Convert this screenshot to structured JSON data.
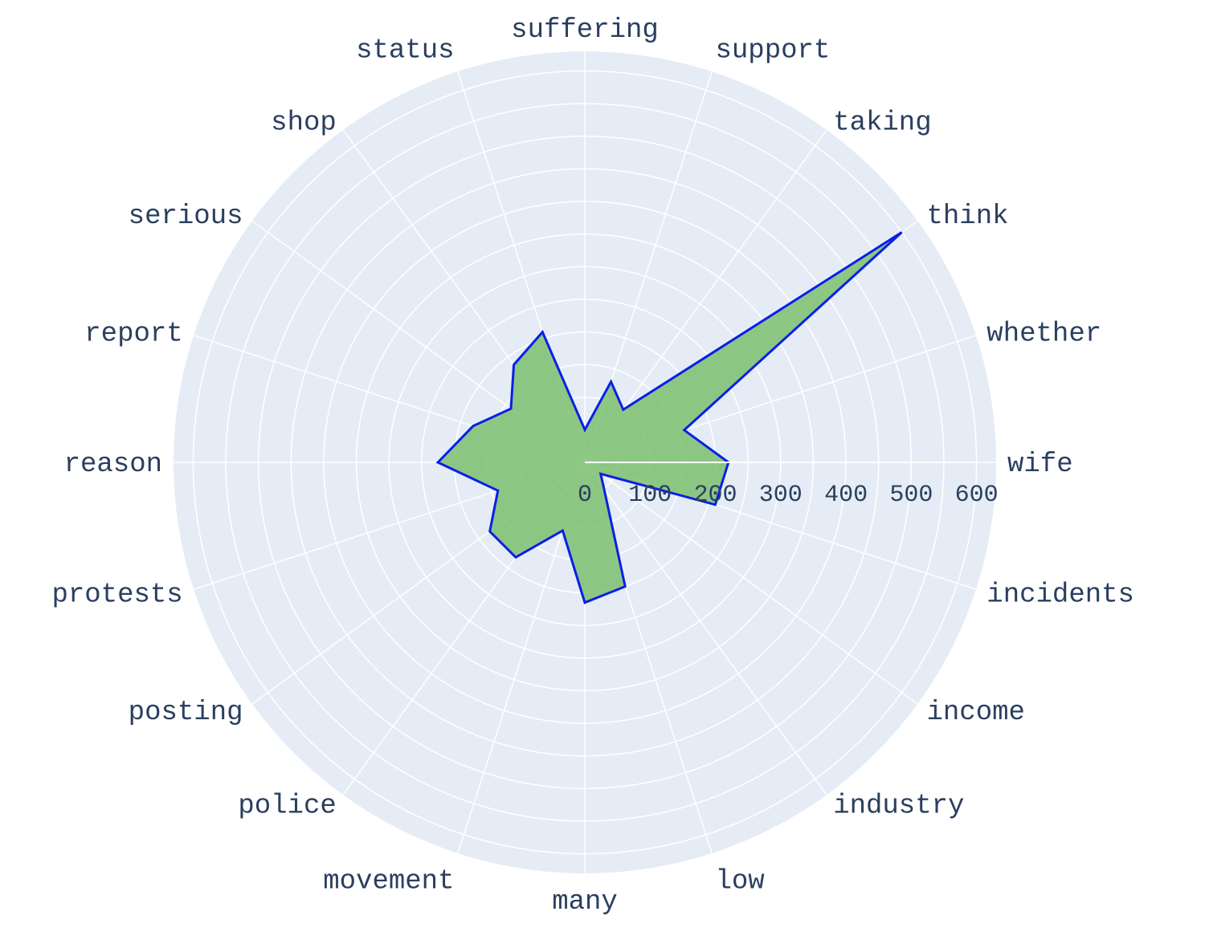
{
  "chart_data": {
    "type": "radar",
    "categories": [
      "wife",
      "whether",
      "think",
      "taking",
      "support",
      "suffering",
      "status",
      "shop",
      "serious",
      "report",
      "reason",
      "protests",
      "posting",
      "police",
      "movement",
      "many",
      "low",
      "industry",
      "income",
      "incidents"
    ],
    "series": [
      {
        "values": [
          220,
          160,
          600,
          100,
          130,
          50,
          210,
          185,
          140,
          180,
          225,
          140,
          180,
          180,
          110,
          215,
          200,
          50,
          30,
          210
        ]
      }
    ],
    "radial_ticks": [
      "0",
      "100",
      "200",
      "300",
      "400",
      "500",
      "600"
    ],
    "radial_range": [
      0,
      630
    ],
    "angular_direction": "counterclockwise",
    "angular_start": "right",
    "grid": true,
    "colors": {
      "background": "#e5ecf6",
      "grid": "#ffffff",
      "fill": "#7cbf6e",
      "line": "#0a1fe8",
      "text": "#2a3f5f"
    }
  }
}
